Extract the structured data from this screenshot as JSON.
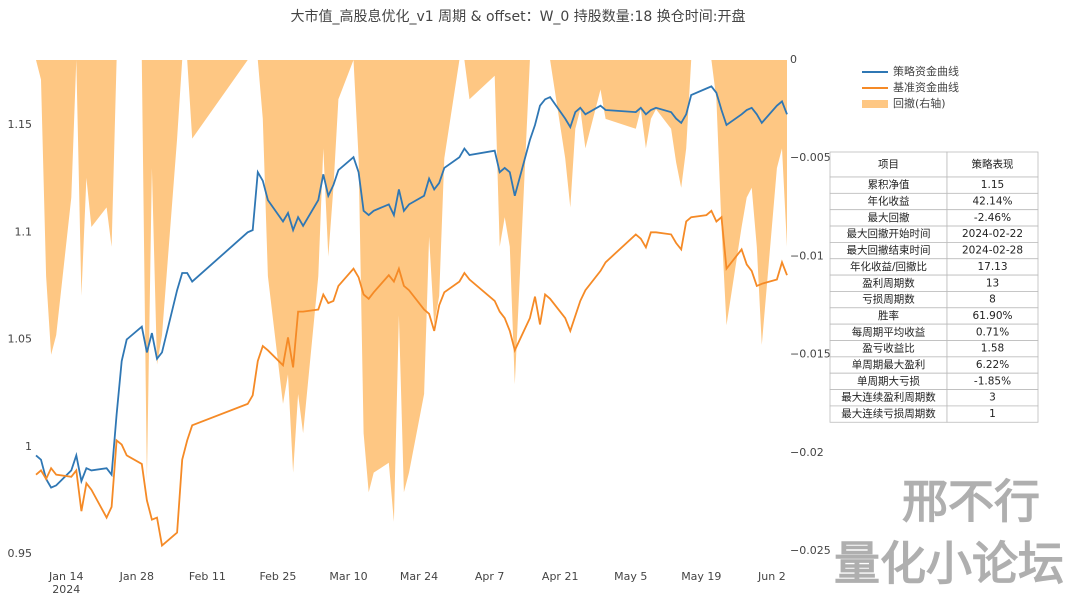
{
  "chart_data": {
    "type": "line",
    "title": "大市值_高股息优化_v1 周期 & offset：W_0 持股数量:18 换仓时间:开盘",
    "x": [
      "2024-01-08",
      "2024-01-09",
      "2024-01-10",
      "2024-01-11",
      "2024-01-12",
      "2024-01-15",
      "2024-01-16",
      "2024-01-17",
      "2024-01-18",
      "2024-01-19",
      "2024-01-22",
      "2024-01-23",
      "2024-01-24",
      "2024-01-25",
      "2024-01-26",
      "2024-01-29",
      "2024-01-30",
      "2024-01-31",
      "2024-02-01",
      "2024-02-02",
      "2024-02-05",
      "2024-02-06",
      "2024-02-07",
      "2024-02-08",
      "2024-02-19",
      "2024-02-20",
      "2024-02-21",
      "2024-02-22",
      "2024-02-23",
      "2024-02-26",
      "2024-02-27",
      "2024-02-28",
      "2024-02-29",
      "2024-03-01",
      "2024-03-04",
      "2024-03-05",
      "2024-03-06",
      "2024-03-07",
      "2024-03-08",
      "2024-03-11",
      "2024-03-12",
      "2024-03-13",
      "2024-03-14",
      "2024-03-15",
      "2024-03-18",
      "2024-03-19",
      "2024-03-20",
      "2024-03-21",
      "2024-03-22",
      "2024-03-25",
      "2024-03-26",
      "2024-03-27",
      "2024-03-28",
      "2024-03-29",
      "2024-04-01",
      "2024-04-02",
      "2024-04-03",
      "2024-04-08",
      "2024-04-09",
      "2024-04-10",
      "2024-04-11",
      "2024-04-12",
      "2024-04-15",
      "2024-04-16",
      "2024-04-17",
      "2024-04-18",
      "2024-04-19",
      "2024-04-22",
      "2024-04-23",
      "2024-04-24",
      "2024-04-25",
      "2024-04-26",
      "2024-04-29",
      "2024-04-30",
      "2024-05-06",
      "2024-05-07",
      "2024-05-08",
      "2024-05-09",
      "2024-05-10",
      "2024-05-13",
      "2024-05-14",
      "2024-05-15",
      "2024-05-16",
      "2024-05-17",
      "2024-05-20",
      "2024-05-21",
      "2024-05-22",
      "2024-05-23",
      "2024-05-24",
      "2024-05-27",
      "2024-05-28",
      "2024-05-29",
      "2024-05-30",
      "2024-05-31",
      "2024-06-03",
      "2024-06-04",
      "2024-06-05"
    ],
    "series": [
      {
        "name": "策略资金曲线",
        "color": "#2f77b4",
        "values": [
          0.996,
          0.994,
          0.985,
          0.981,
          0.982,
          0.989,
          0.996,
          0.984,
          0.99,
          0.989,
          0.99,
          0.987,
          1.015,
          1.04,
          1.05,
          1.056,
          1.044,
          1.053,
          1.041,
          1.044,
          1.073,
          1.081,
          1.081,
          1.077,
          1.1,
          1.101,
          1.128,
          1.124,
          1.115,
          1.105,
          1.109,
          1.101,
          1.107,
          1.103,
          1.115,
          1.127,
          1.117,
          1.122,
          1.129,
          1.135,
          1.128,
          1.11,
          1.108,
          1.11,
          1.113,
          1.108,
          1.12,
          1.11,
          1.113,
          1.117,
          1.125,
          1.12,
          1.123,
          1.13,
          1.135,
          1.139,
          1.136,
          1.138,
          1.128,
          1.13,
          1.128,
          1.117,
          1.143,
          1.15,
          1.159,
          1.162,
          1.163,
          1.153,
          1.149,
          1.156,
          1.158,
          1.155,
          1.159,
          1.157,
          1.156,
          1.158,
          1.155,
          1.157,
          1.158,
          1.156,
          1.153,
          1.151,
          1.155,
          1.164,
          1.167,
          1.168,
          1.165,
          1.157,
          1.15,
          1.155,
          1.157,
          1.158,
          1.155,
          1.151,
          1.159,
          1.161,
          1.155
        ]
      },
      {
        "name": "基准资金曲线",
        "color": "#f58a26",
        "values": [
          0.987,
          0.989,
          0.985,
          0.99,
          0.987,
          0.986,
          0.989,
          0.97,
          0.983,
          0.98,
          0.967,
          0.972,
          1.003,
          1.001,
          0.996,
          0.992,
          0.975,
          0.966,
          0.967,
          0.954,
          0.96,
          0.994,
          1.003,
          1.01,
          1.02,
          1.024,
          1.04,
          1.047,
          1.045,
          1.038,
          1.051,
          1.037,
          1.063,
          1.063,
          1.064,
          1.071,
          1.067,
          1.068,
          1.075,
          1.083,
          1.079,
          1.071,
          1.069,
          1.072,
          1.08,
          1.077,
          1.083,
          1.075,
          1.073,
          1.064,
          1.062,
          1.054,
          1.066,
          1.072,
          1.077,
          1.081,
          1.078,
          1.068,
          1.063,
          1.06,
          1.054,
          1.045,
          1.06,
          1.07,
          1.057,
          1.071,
          1.069,
          1.06,
          1.054,
          1.061,
          1.068,
          1.073,
          1.082,
          1.086,
          1.099,
          1.097,
          1.093,
          1.1,
          1.1,
          1.099,
          1.095,
          1.092,
          1.105,
          1.107,
          1.108,
          1.11,
          1.105,
          1.107,
          1.083,
          1.092,
          1.085,
          1.082,
          1.075,
          1.076,
          1.078,
          1.086,
          1.08
        ]
      },
      {
        "name": "回撤(右轴)",
        "color": "rgba(253,180,90,0.75)",
        "axis": "y2",
        "fill": true,
        "values": [
          0,
          -0.001,
          -0.011,
          -0.015,
          -0.014,
          -0.007,
          0,
          -0.012,
          -0.006,
          -0.0085,
          -0.0075,
          -0.0095,
          0,
          0,
          0,
          0,
          -0.0214,
          -0.0055,
          -0.0155,
          -0.014,
          -0.004,
          0,
          0,
          -0.004,
          0,
          0,
          0,
          -0.003,
          -0.011,
          -0.0175,
          -0.016,
          -0.021,
          -0.017,
          -0.019,
          -0.011,
          -0.0045,
          -0.01,
          -0.0065,
          -0.002,
          0,
          -0.005,
          -0.019,
          -0.022,
          -0.021,
          -0.0205,
          -0.0235,
          -0.013,
          -0.022,
          -0.021,
          -0.017,
          -0.009,
          -0.0135,
          -0.012,
          -0.005,
          0,
          0,
          -0.002,
          -0.0008,
          -0.0095,
          -0.008,
          -0.0095,
          -0.0165,
          0,
          0,
          0,
          0,
          0,
          -0.005,
          -0.0075,
          -0.0035,
          -0.0025,
          -0.0045,
          -0.0015,
          -0.003,
          -0.0035,
          -0.0025,
          -0.0045,
          -0.003,
          -0.0025,
          -0.0035,
          -0.0052,
          -0.0065,
          -0.0045,
          0,
          0,
          0,
          -0.002,
          -0.0085,
          -0.0135,
          -0.0085,
          -0.007,
          -0.0065,
          -0.0095,
          -0.0145,
          -0.0055,
          -0.0045,
          -0.0095
        ]
      }
    ],
    "xlim": [
      "2024-01-08",
      "2024-06-05"
    ],
    "xticks": [
      {
        "value": "2024-01-14",
        "label": "Jan 14"
      },
      {
        "value": "2024-01-28",
        "label": "Jan 28"
      },
      {
        "value": "2024-02-11",
        "label": "Feb 11"
      },
      {
        "value": "2024-02-25",
        "label": "Feb 25"
      },
      {
        "value": "2024-03-10",
        "label": "Mar 10"
      },
      {
        "value": "2024-03-24",
        "label": "Mar 24"
      },
      {
        "value": "2024-04-07",
        "label": "Apr 7"
      },
      {
        "value": "2024-04-21",
        "label": "Apr 21"
      },
      {
        "value": "2024-05-05",
        "label": "May 5"
      },
      {
        "value": "2024-05-19",
        "label": "May 19"
      },
      {
        "value": "2024-06-02",
        "label": "Jun 2"
      }
    ],
    "xtick_year": "2024",
    "ylim": [
      0.9449,
      1.1803
    ],
    "yticks": [
      0.95,
      1,
      1.05,
      1.1,
      1.15
    ],
    "y2lim": [
      -0.0257,
      0
    ],
    "y2ticks": [
      0,
      {
        "value": -0.005,
        "label": "−0.005"
      },
      {
        "value": -0.01,
        "label": "−0.01"
      },
      {
        "value": -0.015,
        "label": "−0.015"
      },
      {
        "value": -0.02,
        "label": "−0.02"
      },
      {
        "value": -0.025,
        "label": "−0.025"
      }
    ],
    "grid": false,
    "legend": "top-right"
  },
  "table": {
    "header": [
      "项目",
      "策略表现"
    ],
    "rows": [
      [
        "累积净值",
        "1.15"
      ],
      [
        "年化收益",
        "42.14%"
      ],
      [
        "最大回撤",
        "-2.46%"
      ],
      [
        "最大回撤开始时间",
        "2024-02-22"
      ],
      [
        "最大回撤结束时间",
        "2024-02-28"
      ],
      [
        "年化收益/回撤比",
        "17.13"
      ],
      [
        "盈利周期数",
        "13"
      ],
      [
        "亏损周期数",
        "8"
      ],
      [
        "胜率",
        "61.90%"
      ],
      [
        "每周期平均收益",
        "0.71%"
      ],
      [
        "盈亏收益比",
        "1.58"
      ],
      [
        "单周期最大盈利",
        "6.22%"
      ],
      [
        "单周期大亏损",
        "-1.85%"
      ],
      [
        "最大连续盈利周期数",
        "3"
      ],
      [
        "最大连续亏损周期数",
        "1"
      ]
    ]
  },
  "watermark": [
    "邢不行",
    "量化小论坛"
  ]
}
